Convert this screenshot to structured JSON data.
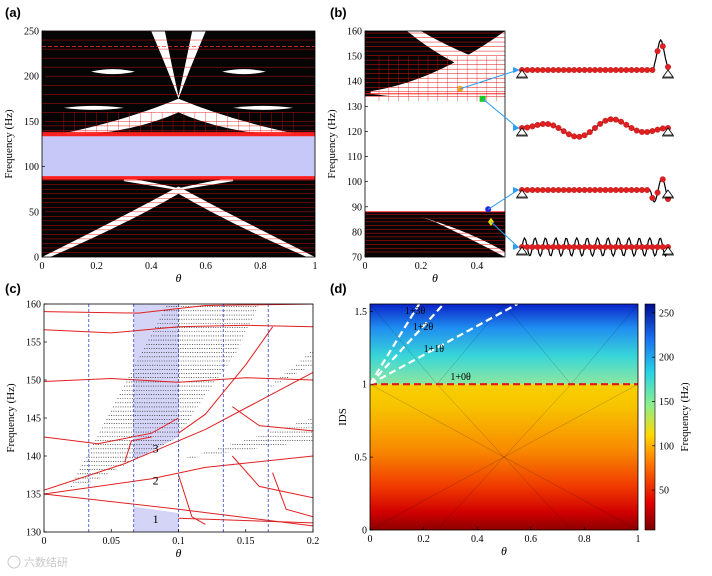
{
  "watermark": "六数结研",
  "chart_data": [
    {
      "panel": "(a)",
      "type": "line",
      "title": "",
      "xlabel": "θ",
      "ylabel": "Frequency (Hz)",
      "xlim": [
        0,
        1
      ],
      "ylim": [
        0,
        250
      ],
      "xticks": [
        "0",
        "0.2",
        "0.4",
        "0.6",
        "0.8",
        "1"
      ],
      "yticks": [
        "0",
        "50",
        "100",
        "150",
        "200",
        "250"
      ],
      "band_gap": [
        88,
        135
      ],
      "band_gap_color": "#c8c8f8",
      "lower_bands": [
        5,
        10,
        15,
        20,
        25,
        30,
        35,
        40,
        45,
        50,
        55,
        60,
        65,
        70,
        75,
        80,
        85,
        88
      ],
      "upper_bands": [
        135,
        140,
        145,
        150,
        160,
        170,
        180,
        190,
        200,
        210,
        220,
        230,
        240,
        250
      ]
    },
    {
      "panel": "(b)",
      "type": "line",
      "xlabel": "θ",
      "ylabel": "Frequency (Hz)",
      "xlim": [
        0,
        0.5
      ],
      "ylim": [
        70,
        160
      ],
      "xticks": [
        "0",
        "0.2",
        "0.4"
      ],
      "yticks": [
        "70",
        "80",
        "90",
        "100",
        "110",
        "120",
        "130",
        "140",
        "150",
        "160"
      ],
      "markers": [
        {
          "name": "orange",
          "theta": 0.34,
          "freq": 137,
          "color": "#f5a623"
        },
        {
          "name": "green",
          "theta": 0.42,
          "freq": 133,
          "color": "#19c919"
        },
        {
          "name": "blue",
          "theta": 0.44,
          "freq": 89,
          "color": "#2424e0"
        },
        {
          "name": "yellow",
          "theta": 0.45,
          "freq": 84,
          "color": "#f2e200"
        }
      ],
      "mode_shapes": [
        "edge mode (right)",
        "edge mode (bulk)",
        "edge mode (right)",
        "bulk mode"
      ]
    },
    {
      "panel": "(c)",
      "type": "line",
      "xlabel": "θ",
      "ylabel": "Frequency (Hz)",
      "xlim": [
        0,
        0.2
      ],
      "ylim": [
        130,
        160
      ],
      "xticks": [
        "0",
        "0.05",
        "0.1",
        "0.15",
        "0.2"
      ],
      "yticks": [
        "130",
        "135",
        "140",
        "145",
        "150",
        "155",
        "160"
      ],
      "shaded_region": [
        0.0667,
        0.1
      ],
      "dashed_lines": [
        0.0333,
        0.0667,
        0.1,
        0.1333,
        0.1667
      ],
      "gap_labels": [
        {
          "text": "1",
          "theta": 0.083,
          "freq": 131.7
        },
        {
          "text": "2",
          "theta": 0.083,
          "freq": 136.8
        },
        {
          "text": "3",
          "theta": 0.083,
          "freq": 141.0
        }
      ]
    },
    {
      "panel": "(d)",
      "type": "heatmap",
      "xlabel": "θ",
      "ylabel": "IDS",
      "xlim": [
        0,
        1
      ],
      "ylim": [
        0,
        1.55
      ],
      "xticks": [
        "0",
        "0.2",
        "0.4",
        "0.6",
        "0.8",
        "1"
      ],
      "yticks": [
        "0",
        "0.5",
        "1",
        "1.5"
      ],
      "colorbar_label": "Frequency (Hz)",
      "colorbar_ticks": [
        "50",
        "100",
        "150",
        "200",
        "250"
      ],
      "colorbar_range": [
        5,
        260
      ],
      "ids_lines": [
        {
          "label": "1+0θ",
          "slope": 0
        },
        {
          "label": "1+1θ",
          "slope": 1
        },
        {
          "label": "1+2θ",
          "slope": 2
        },
        {
          "label": "1+3θ",
          "slope": 3
        }
      ]
    }
  ]
}
